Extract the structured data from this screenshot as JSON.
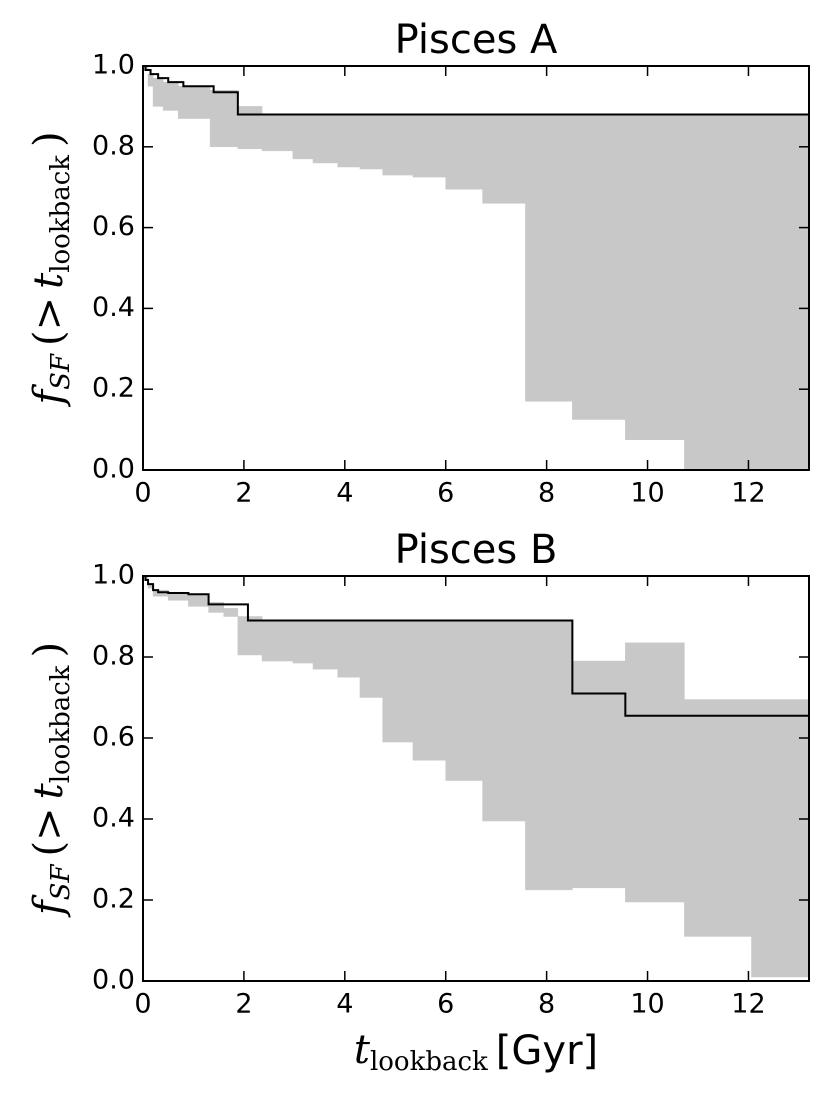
{
  "chart_data": [
    {
      "type": "line",
      "title": "Pisces A",
      "ylabel": [
        {
          "text": "f",
          "math": true,
          "italic": true,
          "sub": false
        },
        {
          "text": "SF",
          "math": true,
          "italic": true,
          "sub": true
        },
        {
          "text": "(>",
          "math": true,
          "italic": false,
          "sub": false
        },
        {
          "text": "t",
          "math": true,
          "italic": true,
          "sub": false
        },
        {
          "text": "lookback",
          "math": true,
          "italic": false,
          "sub": true
        },
        {
          "text": ")",
          "math": true,
          "italic": false,
          "sub": false
        }
      ],
      "xlim": [
        0,
        13.2
      ],
      "ylim": [
        0,
        1.0
      ],
      "xticks": [
        0,
        2,
        4,
        6,
        8,
        10,
        12
      ],
      "yticks": [
        {
          "value": 0,
          "label": "0.0"
        },
        0.2,
        0.4,
        0.6,
        0.8,
        {
          "value": 1,
          "label": "1.0"
        }
      ],
      "band": {
        "color": "#c8c8c8",
        "x": [
          0,
          0.1,
          0.2,
          0.4,
          0.7,
          1.33,
          1.88,
          2.36,
          2.97,
          3.37,
          3.86,
          4.3,
          4.75,
          5.35,
          6.0,
          6.73,
          7.58,
          8.51,
          9.56,
          10.73
        ],
        "lower": [
          0.99,
          0.95,
          0.9,
          0.89,
          0.87,
          0.8,
          0.795,
          0.79,
          0.77,
          0.76,
          0.75,
          0.745,
          0.73,
          0.725,
          0.695,
          0.66,
          0.17,
          0.125,
          0.075,
          0.0
        ],
        "upper": [
          1.0,
          0.98,
          0.97,
          0.96,
          0.95,
          0.94,
          0.9,
          0.88,
          0.88,
          0.88,
          0.88,
          0.88,
          0.88,
          0.88,
          0.88,
          0.88,
          0.88,
          0.88,
          0.88,
          0.88
        ]
      },
      "line": {
        "color": "#000000",
        "x": [
          0,
          0.05,
          0.15,
          0.3,
          0.5,
          0.8,
          1.4,
          1.88
        ],
        "values": [
          1.0,
          0.99,
          0.98,
          0.97,
          0.96,
          0.95,
          0.935,
          0.88
        ]
      }
    },
    {
      "type": "line",
      "title": "Pisces B",
      "ylabel": [
        {
          "text": "f",
          "math": true,
          "italic": true,
          "sub": false
        },
        {
          "text": "SF",
          "math": true,
          "italic": true,
          "sub": true
        },
        {
          "text": "(>",
          "math": true,
          "italic": false,
          "sub": false
        },
        {
          "text": "t",
          "math": true,
          "italic": true,
          "sub": false
        },
        {
          "text": "lookback",
          "math": true,
          "italic": false,
          "sub": true
        },
        {
          "text": ")",
          "math": true,
          "italic": false,
          "sub": false
        }
      ],
      "xlabel": [
        {
          "text": "t",
          "math": true,
          "italic": true,
          "sub": false
        },
        {
          "text": "lookback",
          "math": true,
          "italic": false,
          "sub": true
        },
        {
          "text": "[Gyr]",
          "math": false,
          "italic": false,
          "sub": false
        }
      ],
      "xlim": [
        0,
        13.2
      ],
      "ylim": [
        0,
        1.0
      ],
      "xticks": [
        0,
        2,
        4,
        6,
        8,
        10,
        12
      ],
      "yticks": [
        {
          "value": 0,
          "label": "0.0"
        },
        0.2,
        0.4,
        0.6,
        0.8,
        {
          "value": 1,
          "label": "1.0"
        }
      ],
      "band": {
        "color": "#c8c8c8",
        "x": [
          0,
          0.1,
          0.2,
          0.5,
          0.9,
          1.3,
          1.6,
          1.88,
          2.36,
          2.97,
          3.37,
          3.86,
          4.3,
          4.75,
          5.35,
          6.0,
          6.73,
          7.58,
          8.51,
          9.56,
          10.73,
          12.06
        ],
        "lower": [
          0.99,
          0.97,
          0.95,
          0.94,
          0.925,
          0.91,
          0.9,
          0.805,
          0.79,
          0.785,
          0.77,
          0.75,
          0.7,
          0.59,
          0.545,
          0.495,
          0.395,
          0.225,
          0.23,
          0.195,
          0.11,
          0.01
        ],
        "upper": [
          1.0,
          0.98,
          0.965,
          0.96,
          0.955,
          0.935,
          0.92,
          0.9,
          0.89,
          0.89,
          0.89,
          0.89,
          0.89,
          0.89,
          0.89,
          0.89,
          0.89,
          0.89,
          0.79,
          0.835,
          0.695,
          0.695
        ]
      },
      "line": {
        "color": "#000000",
        "x": [
          0,
          0.05,
          0.1,
          0.2,
          0.3,
          0.5,
          0.9,
          1.3,
          2.08,
          8.51,
          9.56
        ],
        "values": [
          1.0,
          0.99,
          0.98,
          0.965,
          0.96,
          0.958,
          0.955,
          0.93,
          0.89,
          0.71,
          0.655
        ]
      }
    }
  ]
}
